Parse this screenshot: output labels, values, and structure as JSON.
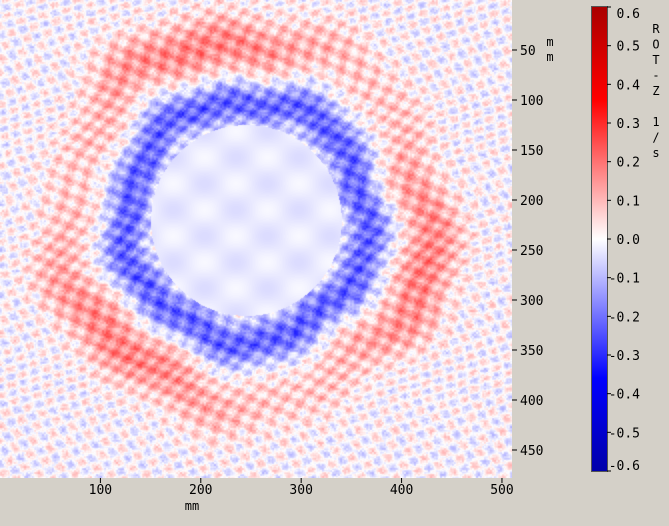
{
  "chart_data": {
    "type": "heatmap",
    "title": "",
    "xlabel": "mm",
    "ylabel": "mm",
    "colorbar_label": "ROT-Z 1/s",
    "colorbar_label_chars": [
      "R",
      "O",
      "T",
      "-",
      "Z",
      "",
      "1",
      "/",
      "s"
    ],
    "x_ticks": [
      "100",
      "200",
      "300",
      "400",
      "500"
    ],
    "y_ticks": [
      "50",
      "100",
      "150",
      "200",
      "250",
      "300",
      "350",
      "400",
      "450"
    ],
    "x_tick_values": [
      100,
      200,
      300,
      400,
      500
    ],
    "y_tick_values": [
      50,
      100,
      150,
      200,
      250,
      300,
      350,
      400,
      450
    ],
    "xlim": [
      0,
      510
    ],
    "ylim": [
      0,
      478
    ],
    "colorbar_ticks": [
      "0.6",
      "0.5",
      "0.4",
      "0.3",
      "0.2",
      "0.1",
      "0.0",
      "-0.1",
      "-0.2",
      "-0.3",
      "-0.4",
      "-0.5",
      "-0.6"
    ],
    "colorbar_tick_values": [
      0.6,
      0.5,
      0.4,
      0.3,
      0.2,
      0.1,
      0.0,
      -0.1,
      -0.2,
      -0.3,
      -0.4,
      -0.5,
      -0.6
    ],
    "colorbar_range": [
      -0.6,
      0.6
    ],
    "colormap": {
      "negative": "#0000ff",
      "zero": "#ffffff",
      "positive": "#ff0000"
    },
    "grid": false,
    "legend": "colorbar-right",
    "features": {
      "core_center_mm": [
        245,
        220
      ],
      "core_radius_mm": 95,
      "negative_ring_radius_mm": 120,
      "positive_ring_radius_mm": 180
    }
  }
}
